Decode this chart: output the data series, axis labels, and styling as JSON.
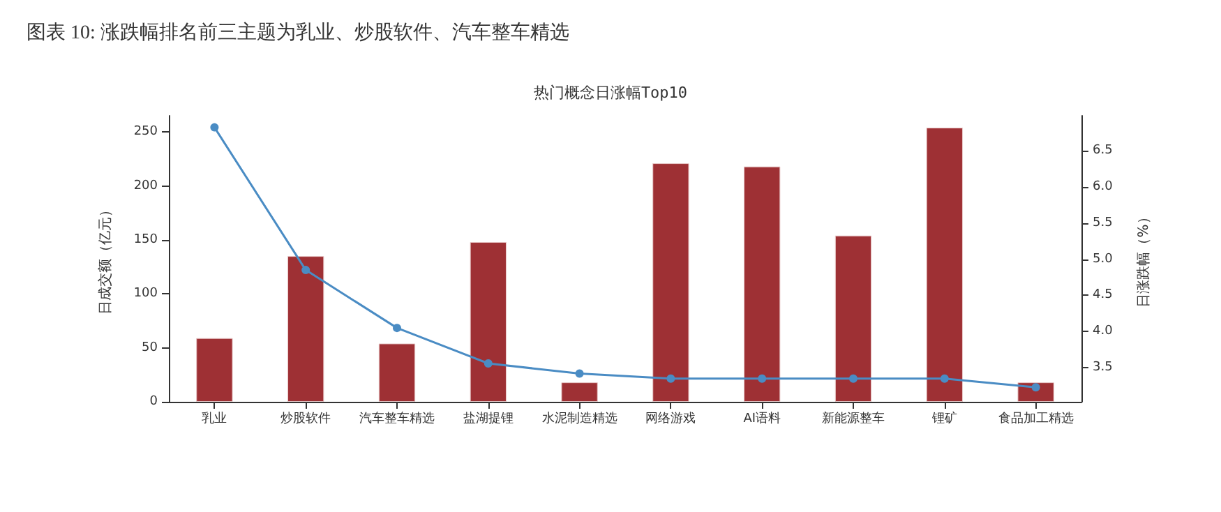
{
  "chart_data": {
    "type": "bar",
    "title": "图表 10: 涨跌幅排名前三主题为乳业、炒股软件、汽车整车精选",
    "subtitle": "热门概念日涨幅Top10",
    "ylabel": "日成交额（亿元）",
    "y2label": "日涨跌幅（%）",
    "categories": [
      "乳业",
      "炒股软件",
      "汽车整车精选",
      "盐湖提锂",
      "水泥制造精选",
      "网络游戏",
      "AI语料",
      "新能源整车",
      "锂矿",
      "食品加工精选"
    ],
    "series": [
      {
        "color": "#9e3034",
        "values": [
          59,
          135,
          54,
          148,
          18,
          221,
          218,
          154,
          254,
          18
        ]
      },
      {
        "type": "line",
        "axis": "y2",
        "color": "#4a8cc4",
        "marker": "circle",
        "values": [
          6.82,
          4.85,
          4.05,
          3.56,
          3.42,
          3.35,
          3.35,
          3.35,
          3.35,
          3.23
        ]
      }
    ],
    "ylim": [
      0,
      265
    ],
    "yticks": [
      0,
      50,
      100,
      150,
      200,
      250
    ],
    "y2lim": [
      3.03,
      6.98
    ],
    "y2ticks": [
      3.5,
      {
        "value": 4,
        "label": "4.0"
      },
      4.5,
      {
        "value": 5,
        "label": "5.0"
      },
      5.5,
      {
        "value": 6,
        "label": "6.0"
      },
      6.5
    ],
    "grid": false
  }
}
